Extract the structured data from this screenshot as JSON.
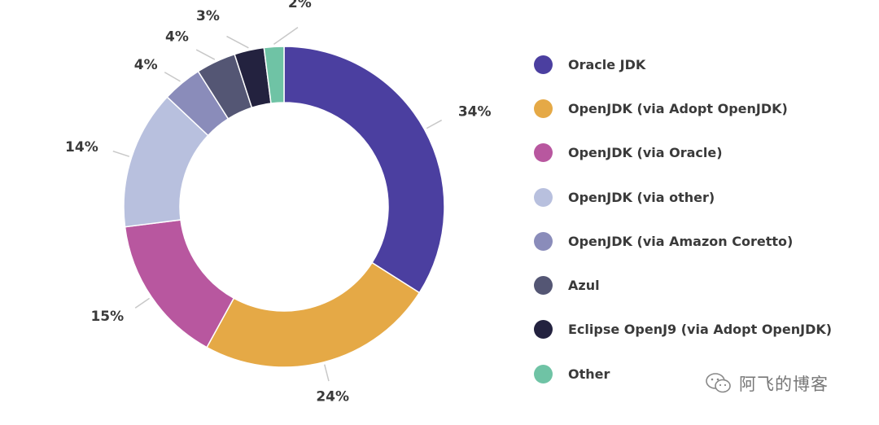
{
  "chart_data": {
    "type": "pie",
    "variant": "donut",
    "title": "",
    "slices": [
      {
        "label": "Oracle JDK",
        "value": 34,
        "display": "34%",
        "color": "#4b3fa0"
      },
      {
        "label": "OpenJDK (via Adopt OpenJDK)",
        "value": 24,
        "display": "24%",
        "color": "#e5a946"
      },
      {
        "label": "OpenJDK (via Oracle)",
        "value": 15,
        "display": "15%",
        "color": "#b8579f"
      },
      {
        "label": "OpenJDK (via other)",
        "value": 14,
        "display": "14%",
        "color": "#b8c0de"
      },
      {
        "label": "OpenJDK (via Amazon Coretto)",
        "value": 4,
        "display": "4%",
        "color": "#8a8cba"
      },
      {
        "label": "Azul",
        "value": 4,
        "display": "4%",
        "color": "#545674"
      },
      {
        "label": "Eclipse OpenJ9 (via Adopt OpenJDK)",
        "value": 3,
        "display": "3%",
        "color": "#23223f"
      },
      {
        "label": "Other",
        "value": 2,
        "display": "2%",
        "color": "#6fc3a5"
      }
    ],
    "legend_position": "right"
  },
  "watermark": {
    "text": "阿飞的博客",
    "icon": "wechat-icon"
  }
}
